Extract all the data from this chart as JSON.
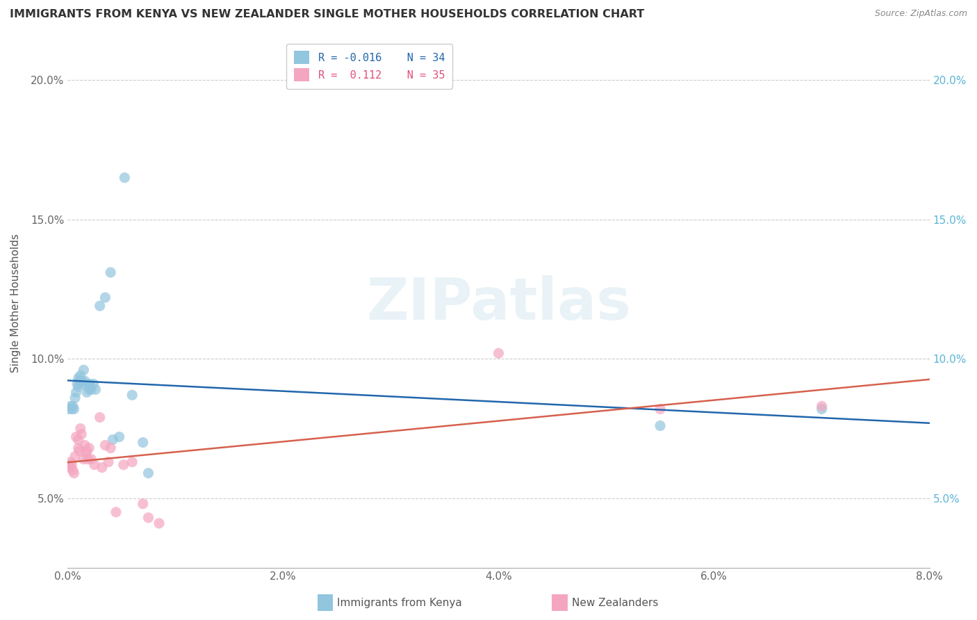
{
  "title": "IMMIGRANTS FROM KENYA VS NEW ZEALANDER SINGLE MOTHER HOUSEHOLDS CORRELATION CHART",
  "source": "Source: ZipAtlas.com",
  "ylabel": "Single Mother Households",
  "xlabel_blue": "Immigrants from Kenya",
  "xlabel_pink": "New Zealanders",
  "watermark": "ZIPatlas",
  "color_blue": "#92c5de",
  "color_pink": "#f4a6c0",
  "color_blue_line": "#2166ac",
  "color_pink_line": "#d6604d",
  "xlim": [
    0.0,
    0.08
  ],
  "ylim": [
    0.025,
    0.215
  ],
  "blue_x": [
    0.00015,
    0.0003,
    0.0004,
    0.0005,
    0.0006,
    0.0007,
    0.0008,
    0.0009,
    0.001,
    0.001,
    0.0011,
    0.0012,
    0.0013,
    0.0014,
    0.0015,
    0.0016,
    0.0018,
    0.002,
    0.002,
    0.0021,
    0.0022,
    0.0024,
    0.0026,
    0.003,
    0.0035,
    0.004,
    0.0042,
    0.0048,
    0.0053,
    0.006,
    0.007,
    0.0075,
    0.055,
    0.07
  ],
  "blue_y": [
    0.082,
    0.083,
    0.082,
    0.083,
    0.082,
    0.086,
    0.088,
    0.091,
    0.09,
    0.093,
    0.092,
    0.094,
    0.092,
    0.091,
    0.096,
    0.092,
    0.088,
    0.089,
    0.091,
    0.09,
    0.089,
    0.091,
    0.089,
    0.119,
    0.122,
    0.131,
    0.071,
    0.072,
    0.165,
    0.087,
    0.07,
    0.059,
    0.076,
    0.082
  ],
  "pink_x": [
    0.0001,
    0.0002,
    0.0003,
    0.0004,
    0.0005,
    0.0006,
    0.0007,
    0.0008,
    0.001,
    0.001,
    0.0011,
    0.0012,
    0.0013,
    0.0015,
    0.0016,
    0.0017,
    0.0018,
    0.0019,
    0.002,
    0.0022,
    0.0025,
    0.003,
    0.0032,
    0.0035,
    0.0038,
    0.004,
    0.0045,
    0.0052,
    0.006,
    0.007,
    0.0075,
    0.0085,
    0.04,
    0.055,
    0.07
  ],
  "pink_y": [
    0.062,
    0.061,
    0.063,
    0.062,
    0.06,
    0.059,
    0.065,
    0.072,
    0.068,
    0.071,
    0.067,
    0.075,
    0.073,
    0.064,
    0.069,
    0.066,
    0.067,
    0.064,
    0.068,
    0.064,
    0.062,
    0.079,
    0.061,
    0.069,
    0.063,
    0.068,
    0.045,
    0.062,
    0.063,
    0.048,
    0.043,
    0.041,
    0.102,
    0.082,
    0.083
  ],
  "yticks": [
    0.05,
    0.1,
    0.15,
    0.2
  ],
  "ytick_labels": [
    "5.0%",
    "10.0%",
    "15.0%",
    "20.0%"
  ],
  "xticks": [
    0.0,
    0.02,
    0.04,
    0.06,
    0.08
  ],
  "xtick_labels": [
    "0.0%",
    "2.0%",
    "4.0%",
    "6.0%",
    "8.0%"
  ],
  "right_ytick_color": "#5ab4d6",
  "legend_R_blue": "R = -0.016",
  "legend_N_blue": "N = 34",
  "legend_R_pink": "R =  0.112",
  "legend_N_pink": "N = 35"
}
